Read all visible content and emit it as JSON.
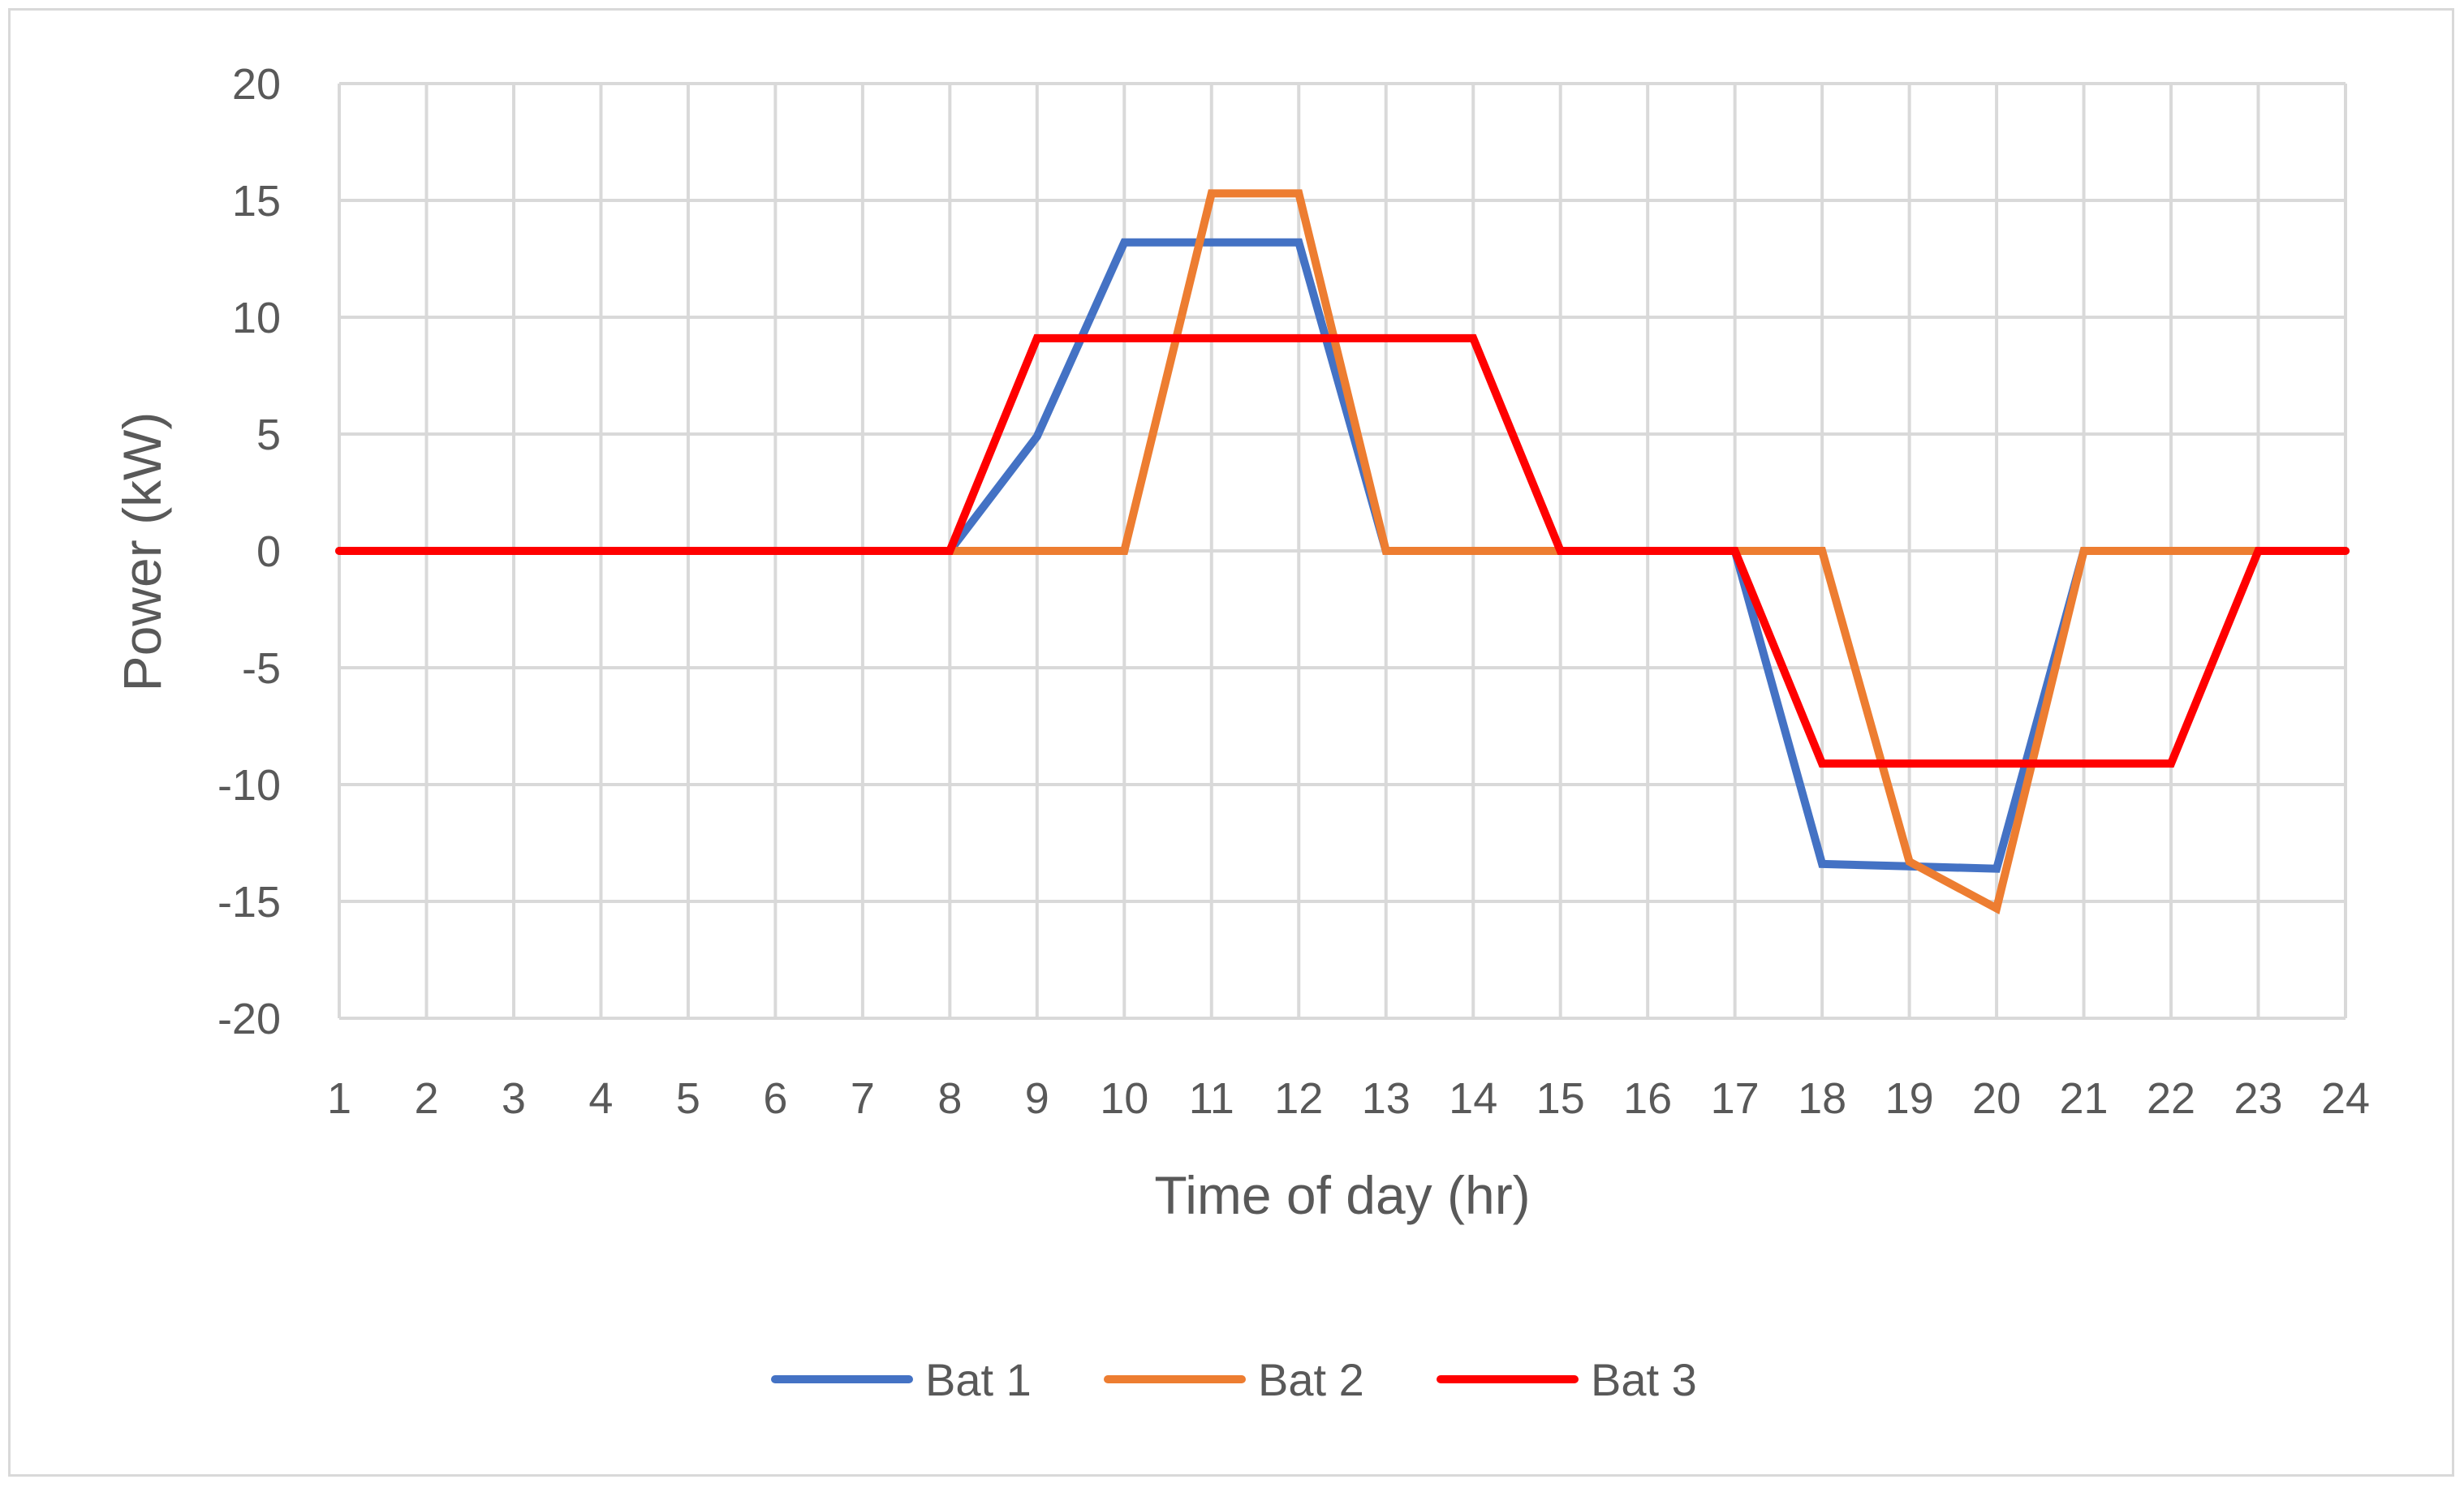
{
  "chart_data": {
    "type": "line",
    "title": "",
    "xlabel": "Time of day (hr)",
    "ylabel": "Power (kW)",
    "ylim": [
      -20,
      20
    ],
    "yticks": [
      20,
      15,
      10,
      5,
      0,
      -5,
      -10,
      -15,
      -20
    ],
    "grid": true,
    "legend_position": "bottom",
    "categories": [
      "1",
      "2",
      "3",
      "4",
      "5",
      "6",
      "7",
      "8",
      "9",
      "10",
      "11",
      "12",
      "13",
      "14",
      "15",
      "16",
      "17",
      "18",
      "19",
      "20",
      "21",
      "22",
      "23",
      "24"
    ],
    "series": [
      {
        "name": "Bat 1",
        "color": "#4472c4",
        "values": [
          0,
          0,
          0,
          0,
          0,
          0,
          0,
          0,
          4.9,
          13.2,
          13.2,
          13.2,
          0,
          0,
          0,
          0,
          0,
          -13.4,
          -13.5,
          -13.6,
          0,
          0,
          0,
          0
        ]
      },
      {
        "name": "Bat 2",
        "color": "#ed7d31",
        "values": [
          0,
          0,
          0,
          0,
          0,
          0,
          0,
          0,
          0,
          0,
          15.3,
          15.3,
          0,
          0,
          0,
          0,
          0,
          0,
          -13.3,
          -15.3,
          0,
          0,
          0,
          0
        ]
      },
      {
        "name": "Bat 3",
        "color": "#ff0000",
        "values": [
          0,
          0,
          0,
          0,
          0,
          0,
          0,
          0,
          9.1,
          9.1,
          9.1,
          9.1,
          9.1,
          9.1,
          0,
          0,
          0,
          -9.1,
          -9.1,
          -9.1,
          -9.1,
          -9.1,
          0,
          0
        ]
      }
    ]
  }
}
